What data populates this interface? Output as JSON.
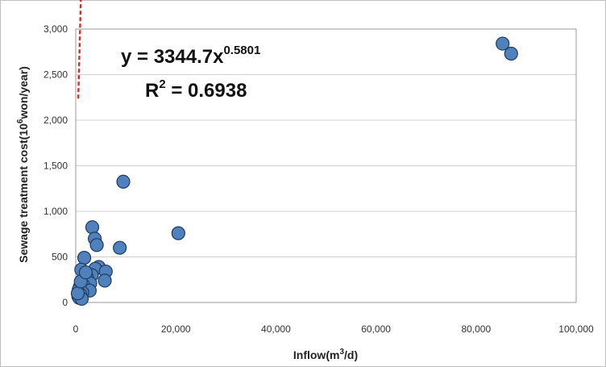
{
  "chart_data": {
    "type": "scatter",
    "title": "",
    "xlabel_main": "Inflow(m",
    "xlabel_sup": "3",
    "xlabel_tail": "/d)",
    "ylabel_main": "Sewage treatment cost(10",
    "ylabel_sup": "6",
    "ylabel_tail": "won/year)",
    "xlim": [
      0,
      100000
    ],
    "ylim": [
      0,
      3000
    ],
    "x_ticks": [
      0,
      20000,
      40000,
      60000,
      80000,
      100000
    ],
    "x_tick_labels": [
      "0",
      "20,000",
      "40,000",
      "60,000",
      "80,000",
      "100,000"
    ],
    "y_ticks": [
      0,
      500,
      1000,
      1500,
      2000,
      2500,
      3000
    ],
    "y_tick_labels": [
      "0",
      "500",
      "1,000",
      "1,500",
      "2,000",
      "2,500",
      "3,000"
    ],
    "grid": "horizontal",
    "marker_color": "#4F81BD",
    "marker_edge_color": "#1F3A5F",
    "trendline_color": "#D92B2B",
    "equation_main": "y = 3344.7x",
    "equation_exp": "0.5801",
    "r2_main": "R",
    "r2_sup": "2",
    "r2_tail": " = 0.6938",
    "trendline": {
      "form": "power",
      "a": 3344.7,
      "b": 0.5801
    },
    "points": [
      {
        "x": 85300,
        "y": 2840
      },
      {
        "x": 87000,
        "y": 2730
      },
      {
        "x": 9500,
        "y": 1325
      },
      {
        "x": 20500,
        "y": 760
      },
      {
        "x": 3300,
        "y": 825
      },
      {
        "x": 3800,
        "y": 700
      },
      {
        "x": 4200,
        "y": 630
      },
      {
        "x": 8800,
        "y": 600
      },
      {
        "x": 1700,
        "y": 490
      },
      {
        "x": 4600,
        "y": 390
      },
      {
        "x": 3900,
        "y": 370
      },
      {
        "x": 1100,
        "y": 360
      },
      {
        "x": 6000,
        "y": 340
      },
      {
        "x": 3200,
        "y": 300
      },
      {
        "x": 2200,
        "y": 280
      },
      {
        "x": 5800,
        "y": 240
      },
      {
        "x": 2900,
        "y": 210
      },
      {
        "x": 1500,
        "y": 190
      },
      {
        "x": 800,
        "y": 170
      },
      {
        "x": 2800,
        "y": 130
      },
      {
        "x": 600,
        "y": 140
      },
      {
        "x": 1300,
        "y": 110
      },
      {
        "x": 900,
        "y": 90
      },
      {
        "x": 500,
        "y": 70
      },
      {
        "x": 700,
        "y": 50
      },
      {
        "x": 1200,
        "y": 40
      },
      {
        "x": 400,
        "y": 100
      },
      {
        "x": 1000,
        "y": 230
      },
      {
        "x": 2000,
        "y": 330
      }
    ]
  }
}
